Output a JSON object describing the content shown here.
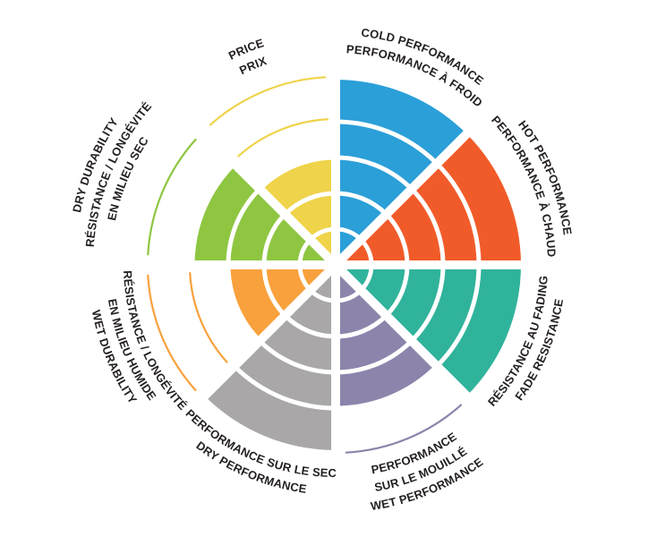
{
  "chart_data": {
    "type": "radial-sector-wheel",
    "description": "Eight-spoke tire/brake rating wheel. Each 45-degree sector is filled from the center outward in concentric ring steps (rating value); unfilled ring levels are drawn as thin colored arc outlines. Labels curve around the outside, bilingual English/French. label_lines are ordered nearest-to-wheel first.",
    "scale": {
      "rings": 5,
      "min": 0,
      "max": 5
    },
    "order": "clockwise from 12 o'clock",
    "background_color": "#FFFFFF",
    "label_color": "#231F20",
    "segments": [
      {
        "id": "cold-performance",
        "value": 5,
        "color": "#2B9FD8",
        "label_en": "COLD PERFORMANCE",
        "label_fr": "PERFORMANCE À FROID",
        "label_lines": [
          "PERFORMANCE À FROID",
          "COLD PERFORMANCE"
        ]
      },
      {
        "id": "hot-performance",
        "value": 5,
        "color": "#F15B2A",
        "label_en": "HOT PERFORMANCE",
        "label_fr": "PERFORMANCE À CHAUD",
        "label_lines": [
          "PERFORMANCE À CHAUD",
          "HOT PERFORMANCE"
        ]
      },
      {
        "id": "fade-resistance",
        "value": 5,
        "color": "#30B39B",
        "label_en": "FADE RESISTANCE",
        "label_fr": "RÉSISTANCE AU FADING",
        "label_lines": [
          "RÉSISTANCE AU FADING",
          "FADE RESISTANCE"
        ]
      },
      {
        "id": "wet-performance",
        "value": 4,
        "color": "#8C84AB",
        "label_en": "WET PERFORMANCE",
        "label_fr": "PERFORMANCE SUR LE MOUILLÉ",
        "label_lines": [
          "PERFORMANCE",
          "SUR LE MOUILLÉ",
          "WET PERFORMANCE"
        ]
      },
      {
        "id": "dry-performance",
        "value": 5,
        "color": "#A9A7A8",
        "label_en": "DRY PERFORMANCE",
        "label_fr": "PERFORMANCE SUR LE SEC",
        "label_lines": [
          "PERFORMANCE SUR LE SEC",
          "DRY PERFORMANCE"
        ]
      },
      {
        "id": "wet-durability",
        "value": 3,
        "color": "#F9A13C",
        "label_en": "WET DURABILITY",
        "label_fr": "RÉSISTANCE / LONGÉVITÉ EN MILIEU HUMIDE",
        "label_lines": [
          "RÉSISTANCE / LONGÉVITÉ",
          "EN MILIEU HUMIDE",
          "WET DURABILITY"
        ]
      },
      {
        "id": "dry-durability",
        "value": 4,
        "color": "#8EC641",
        "label_en": "DRY DURABILITY",
        "label_fr": "RÉSISTANCE / LONGÉVITÉ EN MILIEU SEC",
        "label_lines": [
          "EN MILIEU SEC",
          "RÉSISTANCE / LONGÉVITÉ",
          "DRY DURABILITY"
        ],
        "label_radius_extra": 14
      },
      {
        "id": "price",
        "value": 3,
        "color": "#EFD34A",
        "label_en": "PRICE",
        "label_fr": "PRIX",
        "label_lines": [
          "PRIX",
          "PRICE"
        ]
      }
    ]
  }
}
